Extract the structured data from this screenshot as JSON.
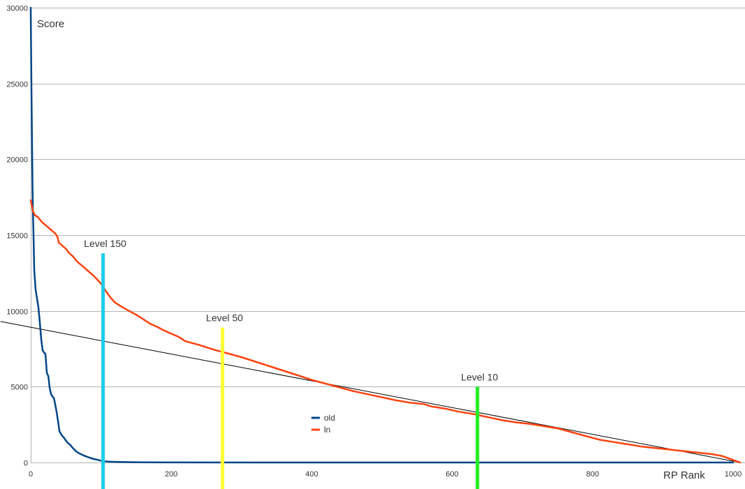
{
  "chart_data": {
    "type": "line",
    "title": "",
    "xlabel": "RP Rank",
    "ylabel": "Score",
    "xlim": [
      0,
      1010
    ],
    "ylim": [
      0,
      30000
    ],
    "xticks": [
      0,
      200,
      400,
      600,
      800,
      1000
    ],
    "yticks": [
      0,
      5000,
      10000,
      15000,
      20000,
      25000,
      30000
    ],
    "grid": "horizontal",
    "legend_position": "center-left",
    "series": [
      {
        "name": "old",
        "color": "#004586",
        "points": [
          [
            0,
            30000
          ],
          [
            1,
            24800
          ],
          [
            2,
            20500
          ],
          [
            3,
            16800
          ],
          [
            4,
            15000
          ],
          [
            5,
            12700
          ],
          [
            7,
            11400
          ],
          [
            9,
            10800
          ],
          [
            11,
            10200
          ],
          [
            13,
            9200
          ],
          [
            15,
            8100
          ],
          [
            17,
            7400
          ],
          [
            19,
            7250
          ],
          [
            21,
            7150
          ],
          [
            23,
            5900
          ],
          [
            25,
            5700
          ],
          [
            27,
            4900
          ],
          [
            29,
            4500
          ],
          [
            31,
            4350
          ],
          [
            33,
            4250
          ],
          [
            35,
            3800
          ],
          [
            37,
            3300
          ],
          [
            39,
            2700
          ],
          [
            41,
            2050
          ],
          [
            44,
            1800
          ],
          [
            47,
            1650
          ],
          [
            50,
            1450
          ],
          [
            53,
            1280
          ],
          [
            56,
            1180
          ],
          [
            60,
            950
          ],
          [
            65,
            720
          ],
          [
            70,
            580
          ],
          [
            75,
            470
          ],
          [
            80,
            380
          ],
          [
            85,
            300
          ],
          [
            90,
            230
          ],
          [
            95,
            180
          ],
          [
            100,
            120
          ],
          [
            105,
            80
          ],
          [
            110,
            60
          ],
          [
            120,
            40
          ],
          [
            140,
            25
          ],
          [
            160,
            10
          ],
          [
            200,
            5
          ],
          [
            400,
            2
          ],
          [
            600,
            1
          ],
          [
            800,
            0
          ],
          [
            1000,
            0
          ]
        ]
      },
      {
        "name": "ln",
        "color": "#ff420e",
        "points": [
          [
            0,
            17300
          ],
          [
            3,
            16600
          ],
          [
            6,
            16300
          ],
          [
            10,
            16200
          ],
          [
            15,
            15900
          ],
          [
            20,
            15700
          ],
          [
            25,
            15500
          ],
          [
            30,
            15300
          ],
          [
            35,
            15100
          ],
          [
            38,
            14900
          ],
          [
            40,
            14500
          ],
          [
            45,
            14300
          ],
          [
            50,
            14100
          ],
          [
            55,
            13800
          ],
          [
            60,
            13600
          ],
          [
            65,
            13300
          ],
          [
            70,
            13100
          ],
          [
            75,
            12900
          ],
          [
            80,
            12700
          ],
          [
            85,
            12500
          ],
          [
            90,
            12300
          ],
          [
            95,
            12050
          ],
          [
            100,
            11800
          ],
          [
            105,
            11450
          ],
          [
            110,
            11100
          ],
          [
            115,
            10800
          ],
          [
            120,
            10550
          ],
          [
            130,
            10250
          ],
          [
            140,
            10000
          ],
          [
            150,
            9750
          ],
          [
            160,
            9450
          ],
          [
            170,
            9150
          ],
          [
            180,
            8950
          ],
          [
            190,
            8700
          ],
          [
            200,
            8500
          ],
          [
            210,
            8300
          ],
          [
            220,
            8000
          ],
          [
            240,
            7750
          ],
          [
            260,
            7450
          ],
          [
            280,
            7200
          ],
          [
            300,
            6950
          ],
          [
            320,
            6650
          ],
          [
            340,
            6350
          ],
          [
            360,
            6050
          ],
          [
            380,
            5750
          ],
          [
            400,
            5450
          ],
          [
            420,
            5200
          ],
          [
            440,
            4950
          ],
          [
            460,
            4700
          ],
          [
            480,
            4500
          ],
          [
            500,
            4300
          ],
          [
            520,
            4100
          ],
          [
            540,
            3950
          ],
          [
            560,
            3850
          ],
          [
            570,
            3700
          ],
          [
            590,
            3550
          ],
          [
            610,
            3350
          ],
          [
            630,
            3200
          ],
          [
            650,
            3000
          ],
          [
            670,
            2800
          ],
          [
            690,
            2650
          ],
          [
            710,
            2550
          ],
          [
            730,
            2400
          ],
          [
            750,
            2250
          ],
          [
            770,
            2000
          ],
          [
            790,
            1750
          ],
          [
            810,
            1500
          ],
          [
            830,
            1350
          ],
          [
            850,
            1200
          ],
          [
            870,
            1050
          ],
          [
            890,
            950
          ],
          [
            910,
            850
          ],
          [
            930,
            750
          ],
          [
            950,
            650
          ],
          [
            970,
            550
          ],
          [
            985,
            420
          ],
          [
            995,
            250
          ],
          [
            1005,
            80
          ],
          [
            1010,
            0
          ]
        ]
      }
    ],
    "trendline": {
      "color": "#000000",
      "points": [
        [
          -43,
          9300
        ],
        [
          1010,
          0
        ]
      ]
    },
    "annotations": [
      {
        "label": "Level 150",
        "x": 103,
        "y_top": 13800,
        "color": "#18ccee"
      },
      {
        "label": "Level 50",
        "x": 273,
        "y_top": 8900,
        "color": "#ffff33"
      },
      {
        "label": "Level 10",
        "x": 636,
        "y_top": 5000,
        "color": "#22ee22"
      }
    ]
  }
}
